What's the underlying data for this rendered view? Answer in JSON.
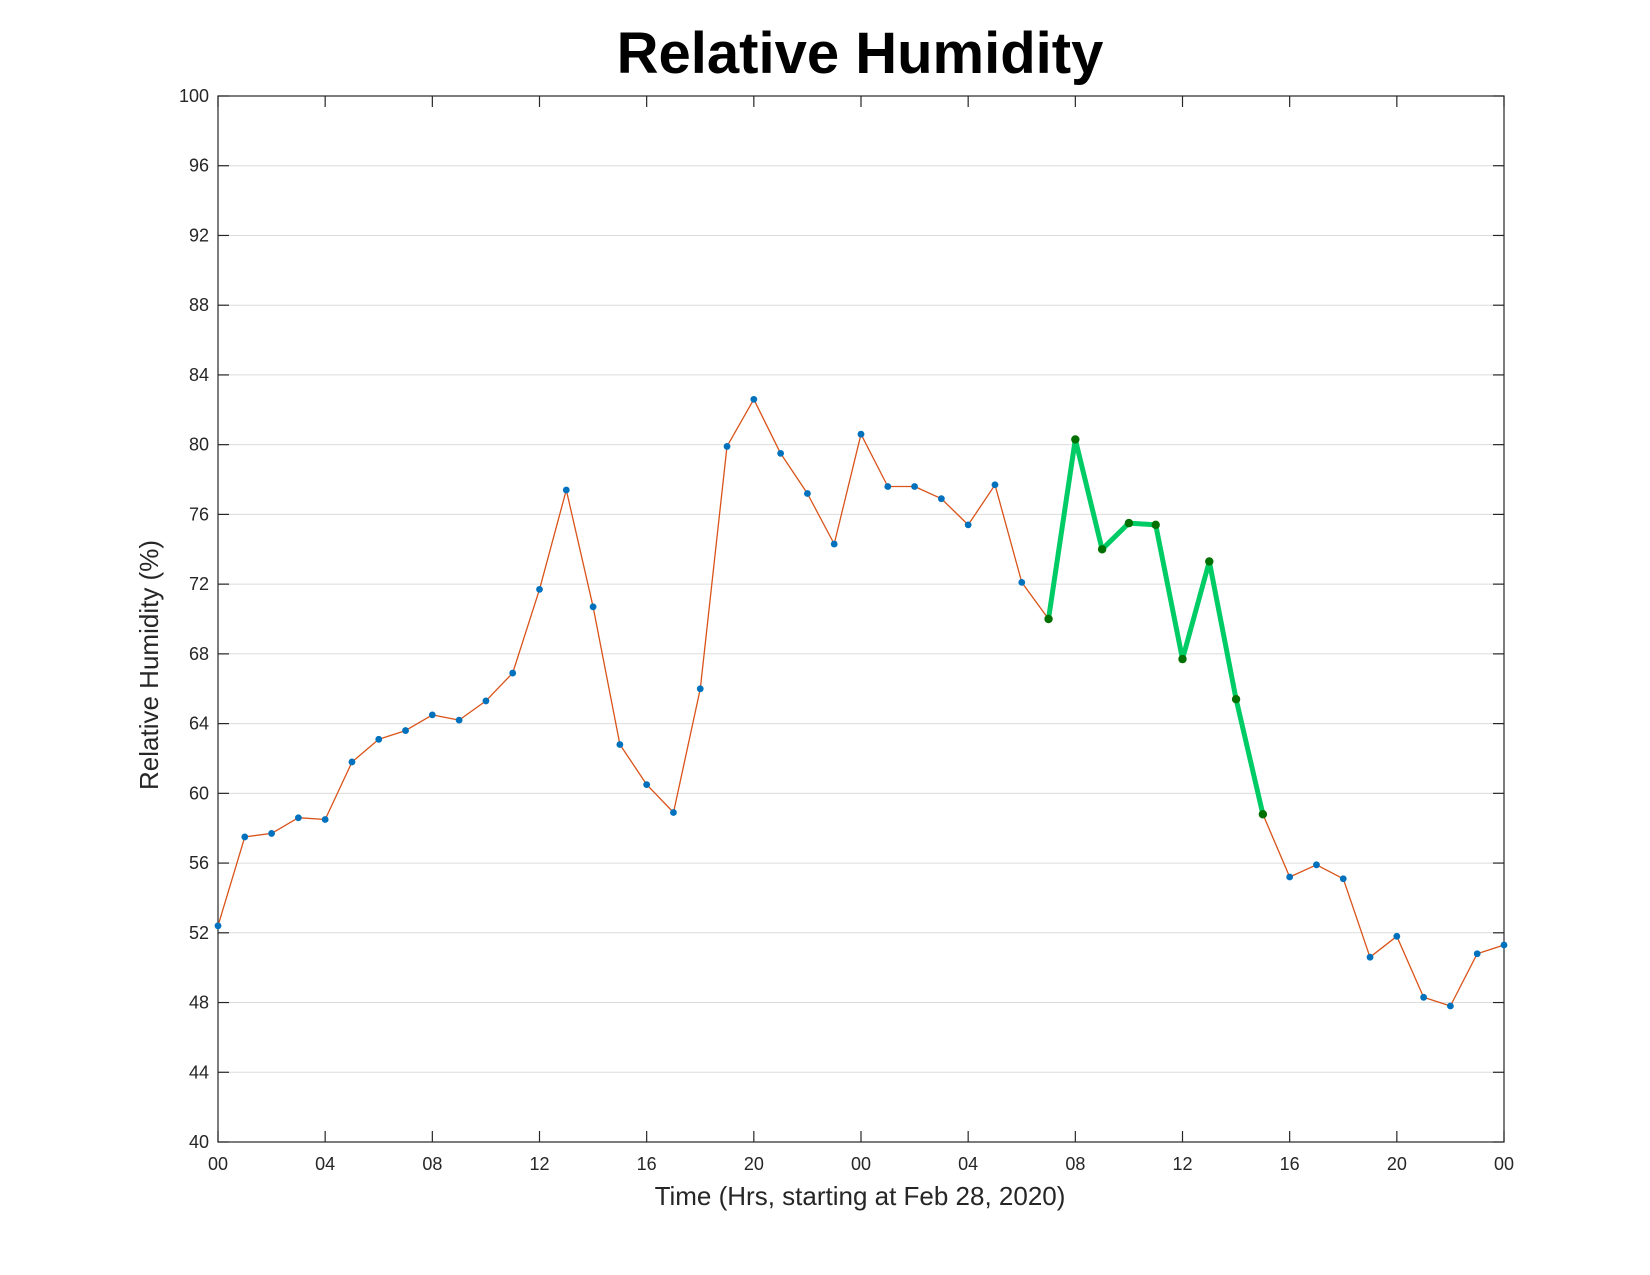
{
  "chart_data": {
    "type": "line",
    "title": "Relative Humidity",
    "xlabel": "Time (Hrs, starting at Feb 28, 2020)",
    "ylabel": "Relative Humidity (%)",
    "xlim": [
      0,
      48
    ],
    "ylim": [
      40,
      100
    ],
    "grid": "horizontal",
    "x_ticks": [
      0,
      4,
      8,
      12,
      16,
      20,
      24,
      28,
      32,
      36,
      40,
      44,
      48
    ],
    "x_tick_labels": [
      "00",
      "04",
      "08",
      "12",
      "16",
      "20",
      "00",
      "04",
      "08",
      "12",
      "16",
      "20",
      "00"
    ],
    "y_ticks": [
      40,
      44,
      48,
      52,
      56,
      60,
      64,
      68,
      72,
      76,
      80,
      84,
      88,
      92,
      96,
      100
    ],
    "y_tick_labels": [
      "40",
      "44",
      "48",
      "52",
      "56",
      "60",
      "64",
      "68",
      "72",
      "76",
      "80",
      "84",
      "88",
      "92",
      "96",
      "100"
    ],
    "series": [
      {
        "line_color": "#d95319",
        "marker_color": "#0072bd",
        "x": [
          0,
          1,
          2,
          3,
          4,
          5,
          6,
          7,
          8,
          9,
          10,
          11,
          12,
          13,
          14,
          15,
          16,
          17,
          18,
          19,
          20,
          21,
          22,
          23,
          24,
          25,
          26,
          27,
          28,
          29,
          30,
          31,
          32,
          33,
          34,
          35,
          36,
          37,
          38,
          39,
          40,
          41,
          42,
          43,
          44,
          45,
          46,
          47,
          48
        ],
        "y": [
          52.4,
          57.5,
          57.7,
          58.6,
          58.5,
          61.8,
          63.1,
          63.6,
          64.5,
          64.2,
          65.3,
          66.9,
          71.7,
          77.4,
          70.7,
          62.8,
          60.5,
          58.9,
          66.0,
          79.9,
          82.6,
          79.5,
          77.2,
          74.3,
          80.6,
          77.6,
          77.6,
          76.9,
          75.4,
          77.7,
          72.1,
          70.0,
          80.3,
          74.0,
          75.5,
          75.4,
          67.7,
          73.3,
          65.4,
          58.8,
          55.2,
          55.9,
          55.1,
          50.6,
          51.8,
          48.3,
          47.8,
          50.8,
          51.3
        ]
      },
      {
        "line_color": "#00cc66",
        "marker_color": "#007000",
        "x": [
          31,
          32,
          33,
          34,
          35,
          36,
          37,
          38,
          39
        ],
        "y": [
          70.0,
          80.3,
          74.0,
          75.5,
          75.4,
          67.7,
          73.3,
          65.4,
          58.8
        ]
      }
    ]
  }
}
